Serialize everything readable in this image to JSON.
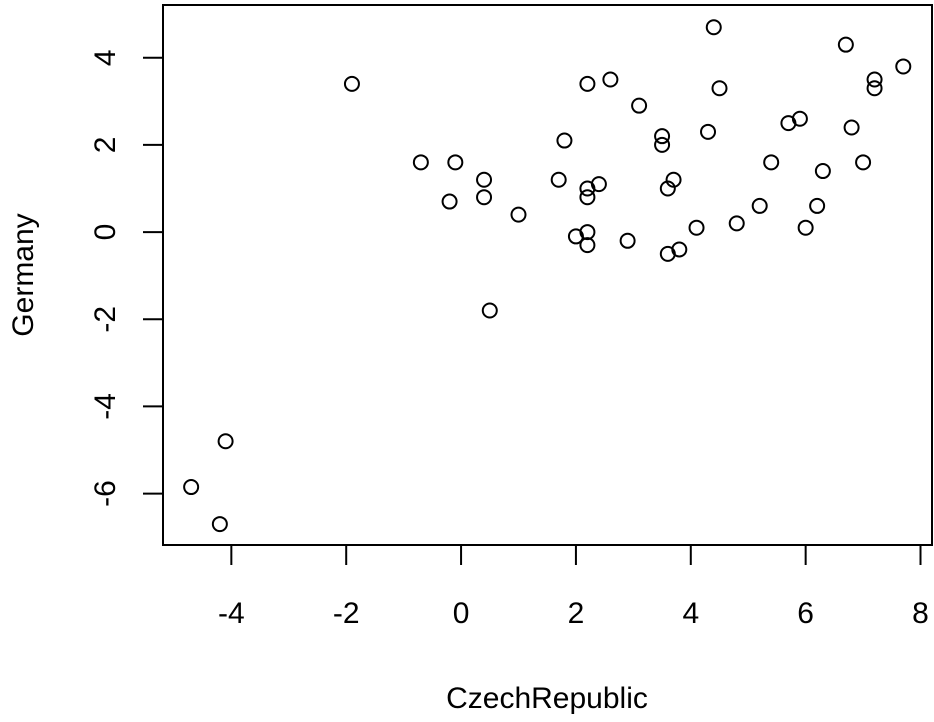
{
  "chart_data": {
    "type": "scatter",
    "x_label": "CzechRepublic",
    "y_label": "Germany",
    "x": [
      -1.9,
      -0.7,
      -0.1,
      -0.2,
      0.4,
      0.4,
      1.0,
      0.5,
      1.7,
      1.8,
      2.0,
      2.2,
      2.2,
      2.4,
      2.2,
      2.2,
      2.2,
      2.6,
      2.9,
      3.1,
      3.5,
      3.5,
      3.6,
      3.7,
      3.6,
      3.8,
      4.1,
      4.3,
      4.4,
      4.5,
      4.8,
      5.2,
      5.4,
      5.7,
      5.9,
      6.0,
      6.2,
      6.3,
      6.7,
      6.8,
      7.0,
      7.2,
      7.2,
      7.7,
      -4.7,
      -4.1,
      -4.2
    ],
    "values": [
      3.4,
      1.6,
      1.6,
      0.7,
      1.2,
      0.8,
      0.4,
      -1.8,
      1.2,
      2.1,
      -0.1,
      3.4,
      1.0,
      1.1,
      0.8,
      0.0,
      -0.3,
      3.5,
      -0.2,
      2.9,
      2.2,
      2.0,
      1.0,
      1.2,
      -0.5,
      -0.4,
      0.1,
      2.3,
      4.7,
      3.3,
      0.2,
      0.6,
      1.6,
      2.5,
      2.6,
      0.1,
      0.6,
      1.4,
      4.3,
      2.4,
      1.6,
      3.5,
      3.3,
      3.8,
      -5.85,
      -4.8,
      -6.7
    ],
    "color": "#000000",
    "xlim": [
      -5.19,
      8.2
    ],
    "ylim": [
      -7.18,
      5.21
    ],
    "xticks": [
      -4,
      -2,
      0,
      2,
      4,
      6,
      8
    ],
    "yticks": [
      -6,
      -4,
      -2,
      0,
      2,
      4
    ]
  }
}
